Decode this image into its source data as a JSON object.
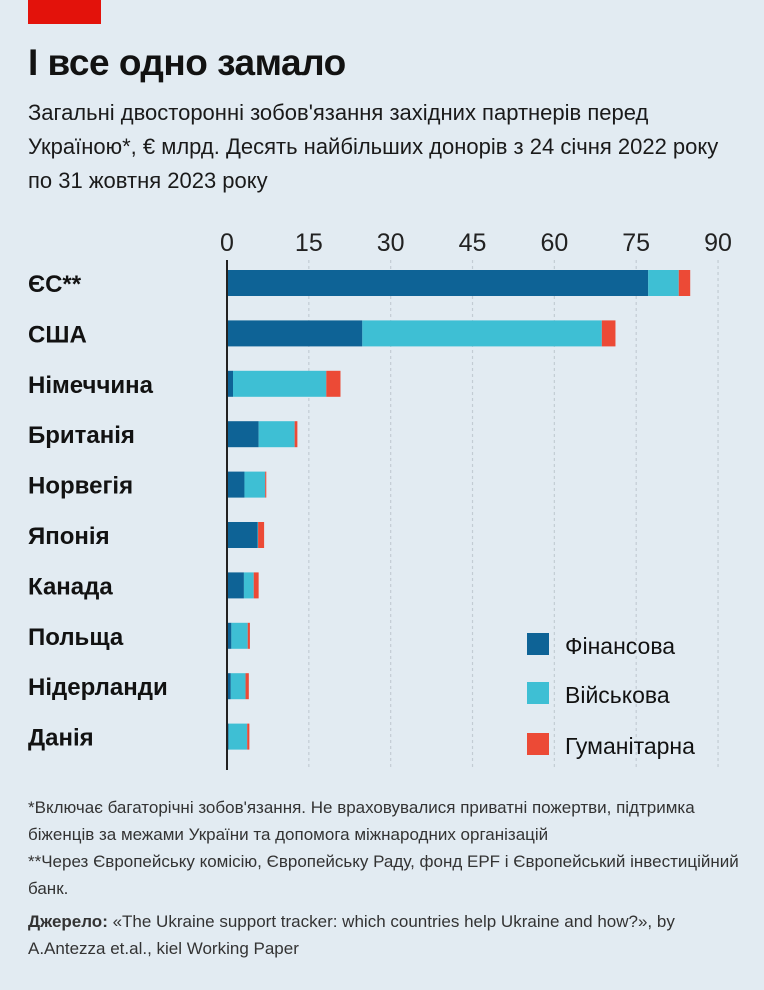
{
  "header": {
    "title": "І все одно замало",
    "subtitle": "Загальні двосторонні зобов'язання західних партнерів перед Україною*, € млрд. Десять найбільших донорів з 24 січня 2022 року по 31 жовтня 2023 року"
  },
  "notes": {
    "note1": "*Включає багаторічні зобов'язання. Не враховувалися приватні пожертви, підтримка біженців за межами України та допомога міжнародних організацій",
    "note2": "**Через Європейську комісію, Європейську Раду, фонд EPF і Європейський інвестиційний банк.",
    "source_label": "Джерело:",
    "source_text": " «The Ukraine support tracker: which countries help Ukraine and how?», by A.Antezza et.al., kiel Working Paper"
  },
  "colors": {
    "financial": "#0e6396",
    "military": "#3ebfd4",
    "humanitarian": "#ec4a36",
    "background": "#e2ebf2",
    "grid": "#c3ccd4"
  },
  "chart_data": {
    "type": "bar",
    "orientation": "horizontal",
    "stacked": true,
    "categories": [
      "ЄС**",
      "США",
      "Німеччина",
      "Британія",
      "Норвегія",
      "Японія",
      "Канада",
      "Польща",
      "Нідерланди",
      "Данія"
    ],
    "series": [
      {
        "name": "Фінансова",
        "color": "#0e6396",
        "values": [
          77.2,
          24.8,
          1.1,
          5.8,
          3.2,
          5.6,
          3.1,
          0.8,
          0.7,
          0.3
        ]
      },
      {
        "name": "Військова",
        "color": "#3ebfd4",
        "values": [
          5.6,
          43.9,
          17.1,
          6.6,
          3.8,
          0.1,
          1.8,
          3.0,
          2.7,
          3.4
        ]
      },
      {
        "name": "Гуманітарна",
        "color": "#ec4a36",
        "values": [
          2.1,
          2.5,
          2.6,
          0.5,
          0.2,
          1.1,
          0.9,
          0.4,
          0.6,
          0.4
        ]
      }
    ],
    "xticks": [
      0,
      15,
      30,
      45,
      60,
      75,
      90
    ],
    "xlim": [
      0,
      90
    ],
    "grid": true,
    "legend_position": "bottom-right"
  }
}
